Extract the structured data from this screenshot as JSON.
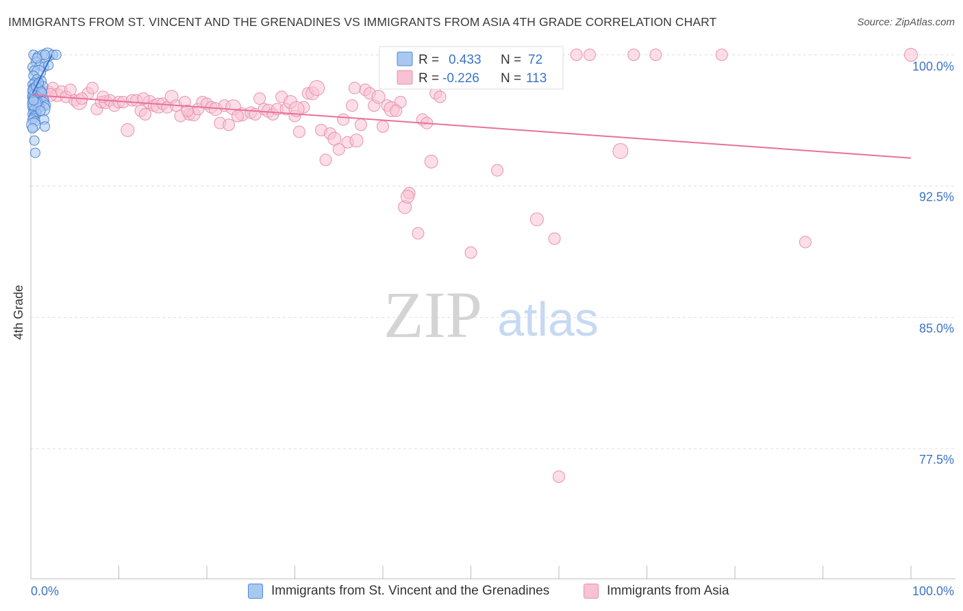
{
  "title": "IMMIGRANTS FROM ST. VINCENT AND THE GRENADINES VS IMMIGRANTS FROM ASIA 4TH GRADE CORRELATION CHART",
  "source": "Source: ZipAtlas.com",
  "watermark": {
    "zip": "ZIP",
    "atlas": "atlas"
  },
  "colors": {
    "blue_fill": "#a9c8f0",
    "blue_stroke": "#4f86d4",
    "blue_line": "#2f6fd0",
    "pink_fill": "#f7c2d3",
    "pink_stroke": "#e891ae",
    "pink_line": "#e8709a",
    "accent_text": "#3b73c8",
    "grid": "#dddddd"
  },
  "legend": {
    "series1": {
      "r_label": "R =",
      "r_value": "0.433",
      "n_label": "N =",
      "n_value": "72"
    },
    "series2": {
      "r_label": "R =",
      "r_value": "-0.226",
      "n_label": "N =",
      "n_value": "113"
    }
  },
  "chart_data": {
    "type": "scatter",
    "title": "IMMIGRANTS FROM ST. VINCENT AND THE GRENADINES VS IMMIGRANTS FROM ASIA 4TH GRADE CORRELATION CHART",
    "xlabel": "",
    "ylabel": "4th Grade",
    "xlim": [
      0,
      100
    ],
    "ylim": [
      70.5,
      101.5
    ],
    "x_tick_labels": [
      "0.0%",
      "100.0%"
    ],
    "y_ticks": [
      77.5,
      85.0,
      92.5,
      100.0
    ],
    "y_tick_labels": [
      "77.5%",
      "85.0%",
      "92.5%",
      "100.0%"
    ],
    "grid": true,
    "series": [
      {
        "name": "Immigrants from St. Vincent and the Grenadines",
        "color": "blue",
        "trend": {
          "x": [
            0.2,
            2.4
          ],
          "y": [
            97.8,
            100.0
          ]
        },
        "points": [
          [
            0.3,
            100.0
          ],
          [
            0.8,
            99.9
          ],
          [
            1.3,
            100.0
          ],
          [
            1.9,
            100.0
          ],
          [
            2.5,
            100.0
          ],
          [
            2.9,
            100.0
          ],
          [
            1.6,
            100.0
          ],
          [
            0.6,
            99.6
          ],
          [
            1.0,
            99.4
          ],
          [
            1.5,
            99.3
          ],
          [
            0.2,
            99.3
          ],
          [
            0.4,
            99.1
          ],
          [
            0.9,
            99.0
          ],
          [
            0.3,
            98.8
          ],
          [
            0.7,
            98.6
          ],
          [
            1.2,
            98.5
          ],
          [
            0.4,
            98.4
          ],
          [
            0.2,
            98.3
          ],
          [
            0.8,
            98.3
          ],
          [
            1.4,
            98.2
          ],
          [
            0.3,
            98.1
          ],
          [
            0.6,
            98.0
          ],
          [
            1.0,
            98.0
          ],
          [
            0.2,
            97.9
          ],
          [
            0.5,
            97.9
          ],
          [
            0.9,
            97.8
          ],
          [
            1.3,
            97.8
          ],
          [
            0.3,
            97.7
          ],
          [
            0.6,
            97.7
          ],
          [
            0.2,
            97.6
          ],
          [
            0.4,
            97.6
          ],
          [
            0.8,
            97.6
          ],
          [
            1.1,
            97.5
          ],
          [
            0.3,
            97.5
          ],
          [
            0.6,
            97.4
          ],
          [
            1.5,
            97.4
          ],
          [
            0.2,
            97.3
          ],
          [
            0.5,
            97.3
          ],
          [
            0.9,
            97.2
          ],
          [
            1.3,
            97.2
          ],
          [
            0.3,
            97.1
          ],
          [
            0.7,
            97.1
          ],
          [
            1.7,
            97.1
          ],
          [
            0.2,
            97.0
          ],
          [
            0.5,
            97.0
          ],
          [
            1.0,
            97.0
          ],
          [
            0.4,
            96.9
          ],
          [
            0.8,
            96.9
          ],
          [
            1.4,
            96.9
          ],
          [
            0.3,
            96.8
          ],
          [
            0.6,
            96.7
          ],
          [
            0.2,
            96.6
          ],
          [
            0.4,
            96.5
          ],
          [
            0.3,
            96.4
          ],
          [
            0.2,
            96.3
          ],
          [
            1.5,
            96.3
          ],
          [
            0.5,
            96.2
          ],
          [
            0.3,
            96.0
          ],
          [
            1.6,
            95.9
          ],
          [
            0.2,
            95.8
          ],
          [
            0.4,
            95.1
          ],
          [
            0.5,
            94.4
          ],
          [
            0.2,
            98.0
          ],
          [
            0.6,
            98.2
          ],
          [
            1.2,
            97.9
          ],
          [
            0.8,
            97.3
          ],
          [
            0.4,
            97.2
          ],
          [
            1.1,
            96.8
          ],
          [
            0.7,
            99.8
          ],
          [
            2.0,
            99.4
          ],
          [
            0.3,
            97.4
          ],
          [
            0.9,
            98.4
          ]
        ]
      },
      {
        "name": "Immigrants from Asia",
        "color": "pink",
        "trend": {
          "x": [
            0.2,
            100.0
          ],
          "y": [
            97.7,
            94.1
          ]
        },
        "points": [
          [
            0.5,
            97.6
          ],
          [
            1.0,
            98.0
          ],
          [
            1.5,
            97.8
          ],
          [
            2.0,
            97.9
          ],
          [
            2.5,
            98.1
          ],
          [
            3.0,
            97.7
          ],
          [
            3.5,
            97.9
          ],
          [
            4.0,
            97.6
          ],
          [
            4.5,
            98.0
          ],
          [
            5.0,
            97.4
          ],
          [
            5.5,
            97.3
          ],
          [
            6.5,
            97.8
          ],
          [
            7.0,
            98.1
          ],
          [
            7.5,
            96.9
          ],
          [
            8.0,
            97.3
          ],
          [
            8.5,
            97.3
          ],
          [
            9.0,
            97.4
          ],
          [
            9.5,
            97.1
          ],
          [
            10.0,
            97.3
          ],
          [
            10.5,
            97.3
          ],
          [
            11.0,
            95.7
          ],
          [
            11.5,
            97.4
          ],
          [
            12.0,
            97.4
          ],
          [
            12.5,
            96.8
          ],
          [
            13.0,
            96.6
          ],
          [
            13.5,
            97.3
          ],
          [
            14.0,
            97.1
          ],
          [
            14.5,
            97.1
          ],
          [
            15.0,
            97.2
          ],
          [
            15.5,
            97.0
          ],
          [
            16.0,
            97.6
          ],
          [
            16.5,
            97.1
          ],
          [
            17.0,
            96.5
          ],
          [
            17.5,
            97.3
          ],
          [
            18.0,
            96.6
          ],
          [
            18.5,
            96.6
          ],
          [
            19.0,
            96.9
          ],
          [
            19.5,
            97.3
          ],
          [
            20.0,
            97.2
          ],
          [
            20.5,
            97.0
          ],
          [
            21.0,
            96.9
          ],
          [
            21.5,
            96.1
          ],
          [
            22.0,
            97.1
          ],
          [
            22.5,
            96.0
          ],
          [
            23.0,
            97.0
          ],
          [
            24.0,
            96.6
          ],
          [
            25.0,
            96.7
          ],
          [
            25.5,
            96.6
          ],
          [
            26.0,
            97.5
          ],
          [
            26.5,
            96.9
          ],
          [
            27.0,
            96.8
          ],
          [
            27.5,
            96.6
          ],
          [
            28.0,
            96.9
          ],
          [
            28.5,
            97.6
          ],
          [
            29.0,
            96.9
          ],
          [
            29.5,
            97.3
          ],
          [
            30.0,
            96.5
          ],
          [
            30.5,
            95.6
          ],
          [
            31.0,
            97.0
          ],
          [
            31.5,
            97.8
          ],
          [
            32.0,
            97.8
          ],
          [
            32.5,
            98.1
          ],
          [
            33.0,
            95.7
          ],
          [
            33.5,
            94.0
          ],
          [
            34.0,
            95.5
          ],
          [
            34.5,
            95.2
          ],
          [
            35.0,
            94.6
          ],
          [
            35.5,
            96.3
          ],
          [
            36.0,
            95.0
          ],
          [
            36.5,
            97.1
          ],
          [
            37.0,
            95.1
          ],
          [
            37.5,
            96.0
          ],
          [
            38.0,
            98.0
          ],
          [
            38.5,
            97.8
          ],
          [
            39.0,
            97.1
          ],
          [
            39.5,
            97.6
          ],
          [
            40.0,
            95.9
          ],
          [
            40.5,
            97.1
          ],
          [
            41.0,
            96.9
          ],
          [
            42.0,
            97.3
          ],
          [
            42.5,
            91.3
          ],
          [
            43.0,
            92.1
          ],
          [
            44.0,
            89.8
          ],
          [
            44.5,
            96.3
          ],
          [
            45.0,
            96.1
          ],
          [
            45.5,
            93.9
          ],
          [
            46.0,
            97.8
          ],
          [
            48.5,
            99.8
          ],
          [
            50.0,
            88.7
          ],
          [
            53.0,
            93.4
          ],
          [
            57.5,
            90.6
          ],
          [
            59.5,
            89.5
          ],
          [
            60.0,
            75.9
          ],
          [
            62.0,
            100.0
          ],
          [
            63.5,
            100.0
          ],
          [
            67.0,
            94.5
          ],
          [
            68.5,
            100.0
          ],
          [
            71.0,
            100.0
          ],
          [
            78.5,
            100.0
          ],
          [
            88.0,
            89.3
          ],
          [
            100.0,
            100.0
          ],
          [
            8.2,
            97.6
          ],
          [
            17.8,
            96.8
          ],
          [
            36.8,
            98.1
          ],
          [
            41.5,
            96.8
          ],
          [
            42.8,
            91.9
          ],
          [
            46.5,
            97.6
          ],
          [
            48.0,
            98.9
          ],
          [
            23.5,
            96.5
          ],
          [
            12.8,
            97.5
          ],
          [
            2.2,
            97.7
          ],
          [
            5.8,
            97.5
          ],
          [
            30.2,
            96.9
          ]
        ]
      }
    ]
  },
  "bottom_legend": {
    "series1_label": "Immigrants from St. Vincent and the Grenadines",
    "series2_label": "Immigrants from Asia"
  }
}
